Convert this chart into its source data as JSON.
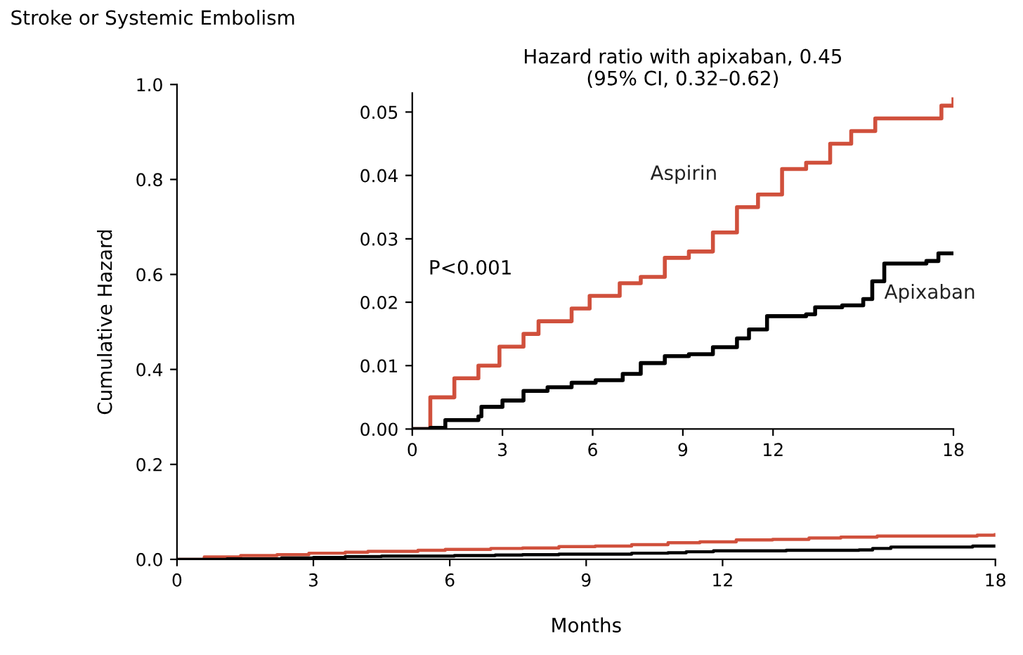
{
  "chart_data": [
    {
      "type": "step",
      "title": "Stroke or Systemic Embolism",
      "xlabel": "Months",
      "ylabel": "Cumulative Hazard",
      "xlim": [
        0,
        18
      ],
      "xticks": [
        0,
        3,
        6,
        9,
        12,
        18
      ],
      "ylim": [
        0,
        1
      ],
      "yticks": [
        {
          "value": 0,
          "label": "0.0"
        },
        {
          "value": 0.2,
          "label": "0.2"
        },
        {
          "value": 0.4,
          "label": "0.4"
        },
        {
          "value": 0.6,
          "label": "0.6"
        },
        {
          "value": 0.8,
          "label": "0.8"
        },
        {
          "value": 1,
          "label": "1.0"
        }
      ],
      "grid": false,
      "legend": false,
      "series": [
        {
          "color": "#d0503c",
          "x": [
            0,
            0.6,
            1.4,
            2.2,
            2.9,
            3.7,
            4.2,
            5.3,
            5.9,
            6.9,
            7.6,
            8.4,
            9.2,
            10.0,
            10.8,
            11.5,
            12.3,
            13.1,
            13.9,
            14.6,
            15.4,
            17.0,
            17.6,
            18.0
          ],
          "values": [
            0,
            0.005,
            0.008,
            0.01,
            0.013,
            0.015,
            0.017,
            0.019,
            0.021,
            0.023,
            0.024,
            0.027,
            0.028,
            0.031,
            0.035,
            0.037,
            0.041,
            0.042,
            0.045,
            0.047,
            0.049,
            0.049,
            0.051,
            0.052
          ]
        },
        {
          "color": "#000000",
          "x": [
            0,
            1.1,
            2.3,
            3.0,
            3.7,
            4.5,
            5.3,
            6.1,
            7.0,
            7.6,
            8.4,
            10.0,
            10.8,
            11.2,
            11.8,
            13.4,
            15.0,
            15.3,
            15.7,
            17.5,
            18.0
          ],
          "values": [
            0,
            0.001,
            0.003,
            0.004,
            0.006,
            0.007,
            0.007,
            0.008,
            0.009,
            0.01,
            0.011,
            0.013,
            0.014,
            0.016,
            0.018,
            0.019,
            0.02,
            0.023,
            0.026,
            0.028,
            0.028
          ]
        }
      ]
    },
    {
      "type": "step",
      "title": "Hazard ratio with apixaban, 0.45\n(95% CI, 0.32–0.62)",
      "annotations": [
        "P<0.001"
      ],
      "xlim": [
        0,
        18
      ],
      "xticks": [
        0,
        3,
        6,
        9,
        12,
        18
      ],
      "ylim": [
        0,
        0.053
      ],
      "yticks": [
        {
          "value": 0,
          "label": "0.00"
        },
        {
          "value": 0.01,
          "label": "0.01"
        },
        {
          "value": 0.02,
          "label": "0.02"
        },
        {
          "value": 0.03,
          "label": "0.03"
        },
        {
          "value": 0.04,
          "label": "0.04"
        },
        {
          "value": 0.05,
          "label": "0.05"
        }
      ],
      "grid": false,
      "legend": false,
      "series": [
        {
          "name": "Aspirin",
          "color": "#d0503c",
          "x": [
            0,
            0.6,
            1.4,
            2.2,
            2.9,
            3.7,
            4.2,
            5.3,
            5.9,
            6.9,
            7.6,
            8.4,
            9.2,
            10.0,
            10.8,
            11.5,
            12.3,
            13.1,
            13.9,
            14.6,
            15.4,
            17.0,
            17.6,
            18.0
          ],
          "values": [
            0,
            0.005,
            0.008,
            0.01,
            0.013,
            0.015,
            0.017,
            0.019,
            0.021,
            0.023,
            0.024,
            0.027,
            0.028,
            0.031,
            0.035,
            0.037,
            0.041,
            0.042,
            0.045,
            0.047,
            0.049,
            0.049,
            0.051,
            0.052
          ]
        },
        {
          "name": "Apixaban",
          "color": "#000000",
          "x": [
            0,
            0.6,
            1.1,
            2.2,
            2.3,
            3.0,
            3.7,
            4.5,
            5.3,
            6.1,
            7.0,
            7.6,
            8.4,
            9.2,
            10.0,
            10.8,
            11.2,
            11.8,
            13.1,
            13.4,
            14.3,
            15.0,
            15.3,
            15.7,
            17.1,
            17.5,
            18.0
          ],
          "values": [
            0,
            0.0002,
            0.0014,
            0.002,
            0.0035,
            0.0045,
            0.006,
            0.0066,
            0.0073,
            0.0077,
            0.0087,
            0.0104,
            0.0115,
            0.0118,
            0.0129,
            0.0143,
            0.0157,
            0.0178,
            0.0181,
            0.0192,
            0.0195,
            0.0205,
            0.0233,
            0.0261,
            0.0265,
            0.0277,
            0.0277
          ]
        }
      ]
    }
  ]
}
